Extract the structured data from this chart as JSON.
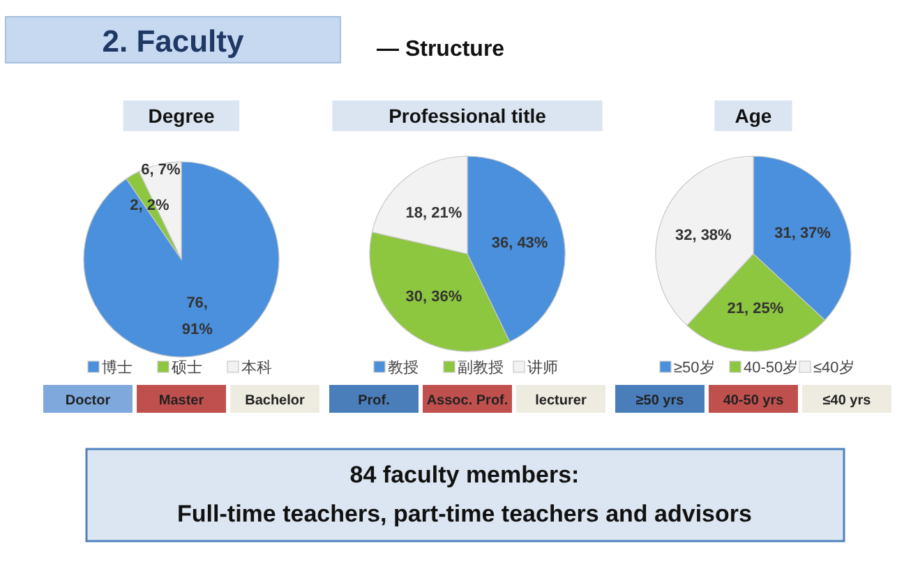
{
  "chart_data": [
    {
      "type": "other",
      "title": "2. Faculty",
      "subtitle": "— Structure",
      "annotations": [
        "84 faculty members:",
        "Full-time teachers, part-time teachers and advisors"
      ]
    },
    {
      "type": "pie",
      "title": "Degree",
      "categories": [
        "博士",
        "硕士",
        "本科"
      ],
      "values": [
        76,
        2,
        6
      ],
      "colors": [
        "#4a90dc",
        "#8dc63f",
        "#f2f2f2"
      ],
      "value_labels": [
        "76, 91%",
        "2, 2%",
        "6, 7%"
      ],
      "legend": "bottom",
      "annotations": [
        "Doctor",
        "Master",
        "Bachelor"
      ]
    },
    {
      "type": "pie",
      "title": "Professional title",
      "categories": [
        "教授",
        "副教授",
        "讲师"
      ],
      "values": [
        36,
        30,
        18
      ],
      "colors": [
        "#4a90dc",
        "#8dc63f",
        "#f2f2f2"
      ],
      "value_labels": [
        "36, 43%",
        "30, 36%",
        "18, 21%"
      ],
      "legend": "bottom",
      "annotations": [
        "Prof.",
        "Assoc. Prof.",
        "lecturer"
      ]
    },
    {
      "type": "pie",
      "title": "Age",
      "categories": [
        "≥50岁",
        "40-50岁",
        "≤40岁"
      ],
      "values": [
        31,
        21,
        32
      ],
      "colors": [
        "#4a90dc",
        "#8dc63f",
        "#f2f2f2"
      ],
      "value_labels": [
        "31, 37%",
        "21, 25%",
        "32, 38%"
      ],
      "legend": "bottom",
      "annotations": [
        "≥50 yrs",
        "40-50 yrs",
        "≤40 yrs"
      ]
    }
  ]
}
